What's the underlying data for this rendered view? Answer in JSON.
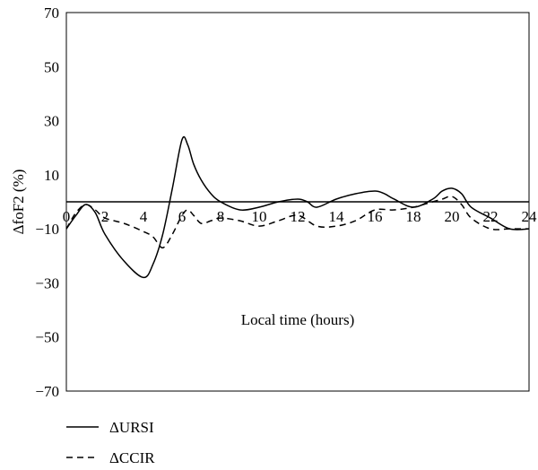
{
  "chart_data": {
    "type": "line",
    "xlabel": "Local time (hours)",
    "ylabel": "ΔfoF2 (%)",
    "xlim": [
      0,
      24
    ],
    "ylim": [
      -70,
      70
    ],
    "x_ticks": [
      0,
      2,
      4,
      6,
      8,
      10,
      12,
      14,
      16,
      18,
      20,
      22,
      24
    ],
    "y_ticks": [
      70,
      50,
      30,
      10,
      -10,
      -30,
      -50,
      -70
    ],
    "x_tick_labels": [
      "0",
      "2",
      "4",
      "6",
      "8",
      "10",
      "12",
      "14",
      "16",
      "18",
      "20",
      "22",
      "24"
    ],
    "y_tick_labels": [
      "70",
      "50",
      "30",
      "10",
      "−10",
      "−30",
      "−50",
      "−70"
    ],
    "reference_line": 0,
    "grid": false,
    "legend_position": "bottom-left",
    "series": [
      {
        "name": "ΔURSI",
        "style": "solid",
        "color": "#000000",
        "x": [
          0,
          0.5,
          1,
          1.5,
          2,
          3,
          4,
          4.5,
          5,
          5.5,
          6,
          6.3,
          6.6,
          7,
          7.5,
          8,
          9,
          10,
          11,
          12,
          12.5,
          13,
          14,
          15,
          16,
          16.5,
          17,
          18,
          19,
          19.5,
          20,
          20.5,
          21,
          22,
          23,
          24
        ],
        "y": [
          -10,
          -5,
          -1,
          -4,
          -12,
          -22,
          -28,
          -23,
          -12,
          5,
          23,
          21,
          14,
          8,
          3,
          0,
          -3,
          -2,
          0,
          1,
          0,
          -2,
          1,
          3,
          4,
          3,
          1,
          -2,
          1,
          4,
          5,
          3,
          -2,
          -6,
          -10,
          -10
        ]
      },
      {
        "name": "ΔCCIR",
        "style": "dashed",
        "color": "#000000",
        "x": [
          0,
          0.5,
          1,
          1.5,
          2,
          3,
          4,
          4.5,
          5,
          5.5,
          6,
          6.3,
          6.6,
          7,
          7.5,
          8,
          9,
          10,
          11,
          12,
          13,
          14,
          15,
          16,
          17,
          18,
          19,
          19.5,
          20,
          20.5,
          21,
          22,
          23,
          24
        ],
        "y": [
          -10,
          -4,
          -1,
          -3,
          -6,
          -8,
          -11,
          -13,
          -17,
          -12,
          -5,
          -3,
          -5,
          -8,
          -7,
          -6,
          -7,
          -9,
          -7,
          -5,
          -9,
          -9,
          -7,
          -3,
          -3,
          -2,
          0,
          1,
          2,
          -1,
          -6,
          -10,
          -10,
          -10
        ]
      }
    ]
  }
}
